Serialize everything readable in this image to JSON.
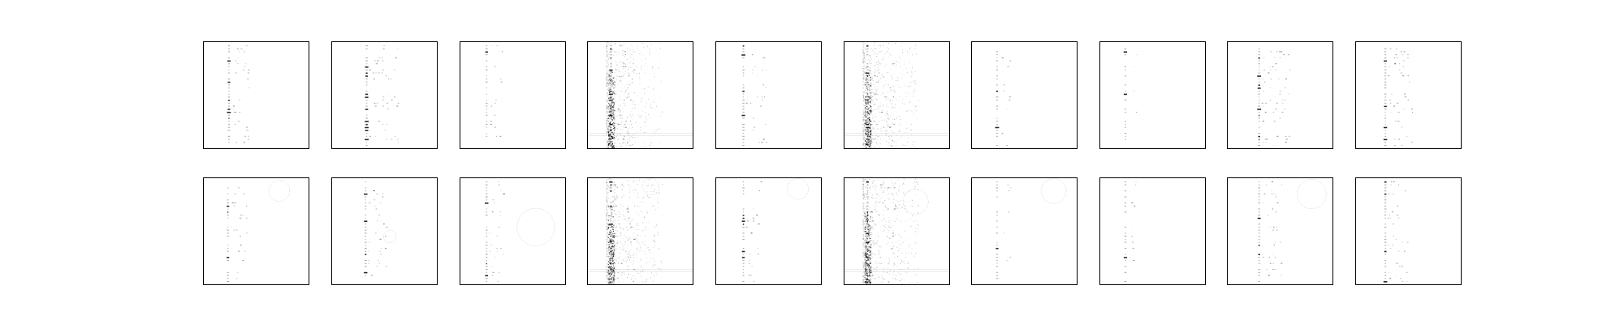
{
  "figure": {
    "background": "#ffffff",
    "ink_color": "#000000",
    "grid_rows": 2,
    "grid_columns": 10
  },
  "panels": [
    {
      "row": 0,
      "col": 0,
      "pattern": "column",
      "position": 0.24,
      "density": 0.5,
      "noise": 0,
      "circles": []
    },
    {
      "row": 0,
      "col": 1,
      "pattern": "column",
      "position": 0.33,
      "density": 0.8,
      "noise": 0,
      "circles": []
    },
    {
      "row": 0,
      "col": 2,
      "pattern": "column",
      "position": 0.25,
      "density": 0.4,
      "noise": 0,
      "circles": []
    },
    {
      "row": 0,
      "col": 3,
      "pattern": "haze",
      "position": 0.22,
      "density": 0.6,
      "noise": 0.9,
      "circles": []
    },
    {
      "row": 0,
      "col": 4,
      "pattern": "column",
      "position": 0.26,
      "density": 0.6,
      "noise": 0,
      "circles": []
    },
    {
      "row": 0,
      "col": 5,
      "pattern": "haze",
      "position": 0.22,
      "density": 0.7,
      "noise": 1.0,
      "circles": []
    },
    {
      "row": 0,
      "col": 6,
      "pattern": "column",
      "position": 0.24,
      "density": 0.3,
      "noise": 0,
      "circles": []
    },
    {
      "row": 0,
      "col": 7,
      "pattern": "column",
      "position": 0.24,
      "density": 0.25,
      "noise": 0,
      "circles": []
    },
    {
      "row": 0,
      "col": 8,
      "pattern": "column",
      "position": 0.3,
      "density": 0.8,
      "noise": 0,
      "circles": []
    },
    {
      "row": 0,
      "col": 9,
      "pattern": "column",
      "position": 0.28,
      "density": 0.7,
      "noise": 0,
      "circles": []
    },
    {
      "row": 1,
      "col": 0,
      "pattern": "column",
      "position": 0.23,
      "density": 0.45,
      "noise": 0,
      "circles": [
        [
          0.72,
          0.12,
          0.1
        ]
      ]
    },
    {
      "row": 1,
      "col": 1,
      "pattern": "column",
      "position": 0.32,
      "density": 0.5,
      "noise": 0,
      "circles": [
        [
          0.55,
          0.55,
          0.06
        ]
      ]
    },
    {
      "row": 1,
      "col": 2,
      "pattern": "column",
      "position": 0.25,
      "density": 0.4,
      "noise": 0,
      "circles": [
        [
          0.72,
          0.46,
          0.18
        ]
      ]
    },
    {
      "row": 1,
      "col": 3,
      "pattern": "haze",
      "position": 0.22,
      "density": 0.6,
      "noise": 0.9,
      "circles": [
        [
          0.42,
          0.65,
          0.08
        ],
        [
          0.6,
          0.08,
          0.08
        ]
      ]
    },
    {
      "row": 1,
      "col": 4,
      "pattern": "column",
      "position": 0.26,
      "density": 0.45,
      "noise": 0,
      "circles": [
        [
          0.78,
          0.1,
          0.1
        ]
      ]
    },
    {
      "row": 1,
      "col": 5,
      "pattern": "haze",
      "position": 0.22,
      "density": 0.7,
      "noise": 1.0,
      "circles": [
        [
          0.68,
          0.22,
          0.12
        ]
      ]
    },
    {
      "row": 1,
      "col": 6,
      "pattern": "column",
      "position": 0.24,
      "density": 0.3,
      "noise": 0,
      "circles": [
        [
          0.78,
          0.12,
          0.12
        ]
      ]
    },
    {
      "row": 1,
      "col": 7,
      "pattern": "column",
      "position": 0.24,
      "density": 0.25,
      "noise": 0,
      "circles": []
    },
    {
      "row": 1,
      "col": 8,
      "pattern": "column",
      "position": 0.3,
      "density": 0.55,
      "noise": 0,
      "circles": [
        [
          0.8,
          0.15,
          0.14
        ]
      ]
    },
    {
      "row": 1,
      "col": 9,
      "pattern": "column",
      "position": 0.28,
      "density": 0.55,
      "noise": 0,
      "circles": []
    }
  ]
}
